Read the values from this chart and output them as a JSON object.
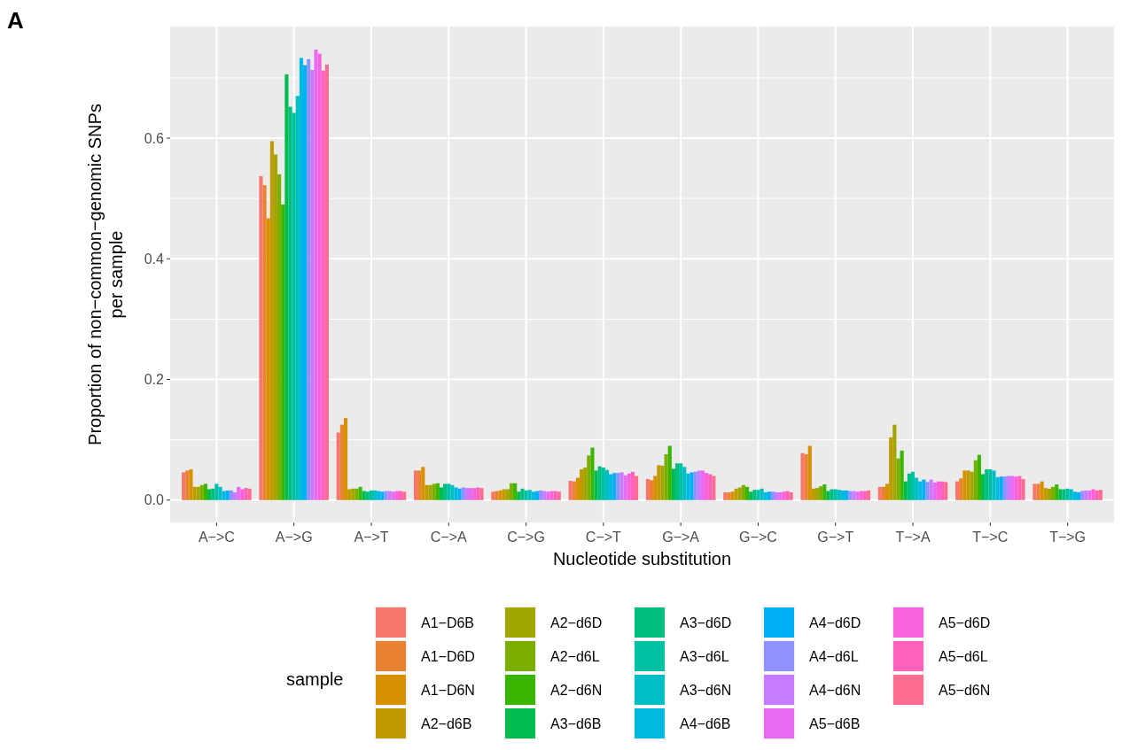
{
  "chart_data": {
    "type": "bar",
    "xlabel": "Nucleotide substitution",
    "ylabel": "Proportion of non−common−genomic SNPs\nper sample",
    "legend_title": "sample",
    "annotations": [
      "A"
    ],
    "categories": [
      "A−>C",
      "A−>G",
      "A−>T",
      "C−>A",
      "C−>G",
      "C−>T",
      "G−>A",
      "G−>C",
      "G−>T",
      "T−>A",
      "T−>C",
      "T−>G"
    ],
    "ylim": [
      -0.037,
      0.785
    ],
    "yticks": [
      {
        "value": 0,
        "label": "0.0"
      },
      {
        "value": 0.2,
        "label": "0.2"
      },
      {
        "value": 0.4,
        "label": "0.4"
      },
      {
        "value": 0.6,
        "label": "0.6"
      }
    ],
    "grid": true,
    "legend": "bottom",
    "series": [
      {
        "name": "A1−D6B",
        "color": "#f8766d",
        "values": [
          0.046,
          0.537,
          0.112,
          0.049,
          0.014,
          0.032,
          0.035,
          0.013,
          0.078,
          0.022,
          0.031,
          0.027
        ]
      },
      {
        "name": "A1−D6D",
        "color": "#ea8331",
        "values": [
          0.049,
          0.522,
          0.125,
          0.049,
          0.015,
          0.031,
          0.033,
          0.013,
          0.076,
          0.022,
          0.036,
          0.027
        ]
      },
      {
        "name": "A1−D6N",
        "color": "#d89000",
        "values": [
          0.051,
          0.467,
          0.136,
          0.055,
          0.016,
          0.037,
          0.04,
          0.014,
          0.09,
          0.027,
          0.049,
          0.031
        ]
      },
      {
        "name": "A2−d6B",
        "color": "#c09b00",
        "values": [
          0.022,
          0.595,
          0.018,
          0.025,
          0.018,
          0.051,
          0.058,
          0.019,
          0.019,
          0.104,
          0.049,
          0.02
        ]
      },
      {
        "name": "A2−d6D",
        "color": "#a3a500",
        "values": [
          0.022,
          0.573,
          0.019,
          0.025,
          0.018,
          0.054,
          0.057,
          0.021,
          0.02,
          0.125,
          0.047,
          0.019
        ]
      },
      {
        "name": "A2−d6L",
        "color": "#7cae00",
        "values": [
          0.025,
          0.54,
          0.019,
          0.027,
          0.028,
          0.074,
          0.076,
          0.025,
          0.023,
          0.069,
          0.066,
          0.022
        ]
      },
      {
        "name": "A2−d6N",
        "color": "#39b600",
        "values": [
          0.027,
          0.49,
          0.022,
          0.028,
          0.028,
          0.087,
          0.09,
          0.022,
          0.026,
          0.082,
          0.075,
          0.026
        ]
      },
      {
        "name": "A3−d6B",
        "color": "#00bb4e",
        "values": [
          0.018,
          0.706,
          0.015,
          0.021,
          0.014,
          0.049,
          0.052,
          0.014,
          0.015,
          0.031,
          0.043,
          0.018
        ]
      },
      {
        "name": "A3−d6D",
        "color": "#00bf7d",
        "values": [
          0.019,
          0.652,
          0.014,
          0.027,
          0.019,
          0.056,
          0.061,
          0.017,
          0.018,
          0.044,
          0.051,
          0.018
        ]
      },
      {
        "name": "A3−d6L",
        "color": "#00c1a3",
        "values": [
          0.027,
          0.642,
          0.016,
          0.027,
          0.016,
          0.054,
          0.061,
          0.017,
          0.018,
          0.047,
          0.051,
          0.019
        ]
      },
      {
        "name": "A3−d6N",
        "color": "#00bfc4",
        "values": [
          0.022,
          0.67,
          0.016,
          0.025,
          0.017,
          0.05,
          0.055,
          0.019,
          0.017,
          0.037,
          0.049,
          0.018
        ]
      },
      {
        "name": "A4−d6B",
        "color": "#00bae0",
        "values": [
          0.015,
          0.733,
          0.015,
          0.021,
          0.014,
          0.043,
          0.044,
          0.013,
          0.016,
          0.031,
          0.038,
          0.014
        ]
      },
      {
        "name": "A4−d6D",
        "color": "#00b0f6",
        "values": [
          0.016,
          0.721,
          0.014,
          0.019,
          0.015,
          0.045,
          0.046,
          0.014,
          0.016,
          0.034,
          0.039,
          0.013
        ]
      },
      {
        "name": "A4−d6L",
        "color": "#8f91ff",
        "values": [
          0.016,
          0.731,
          0.015,
          0.021,
          0.016,
          0.045,
          0.047,
          0.014,
          0.015,
          0.03,
          0.039,
          0.015
        ]
      },
      {
        "name": "A4−d6N",
        "color": "#c77cff",
        "values": [
          0.013,
          0.713,
          0.015,
          0.02,
          0.015,
          0.046,
          0.049,
          0.013,
          0.015,
          0.034,
          0.04,
          0.016
        ]
      },
      {
        "name": "A5−d6B",
        "color": "#e76bf3",
        "values": [
          0.022,
          0.747,
          0.014,
          0.02,
          0.014,
          0.041,
          0.049,
          0.013,
          0.014,
          0.029,
          0.04,
          0.016
        ]
      },
      {
        "name": "A5−d6D",
        "color": "#fa62db",
        "values": [
          0.018,
          0.74,
          0.015,
          0.02,
          0.015,
          0.044,
          0.045,
          0.014,
          0.015,
          0.031,
          0.039,
          0.018
        ]
      },
      {
        "name": "A5−d6L",
        "color": "#ff62bc",
        "values": [
          0.02,
          0.712,
          0.015,
          0.021,
          0.015,
          0.047,
          0.043,
          0.015,
          0.015,
          0.031,
          0.04,
          0.016
        ]
      },
      {
        "name": "A5−d6N",
        "color": "#ff6c91",
        "values": [
          0.019,
          0.722,
          0.014,
          0.02,
          0.014,
          0.04,
          0.04,
          0.013,
          0.016,
          0.03,
          0.035,
          0.017
        ]
      }
    ]
  }
}
